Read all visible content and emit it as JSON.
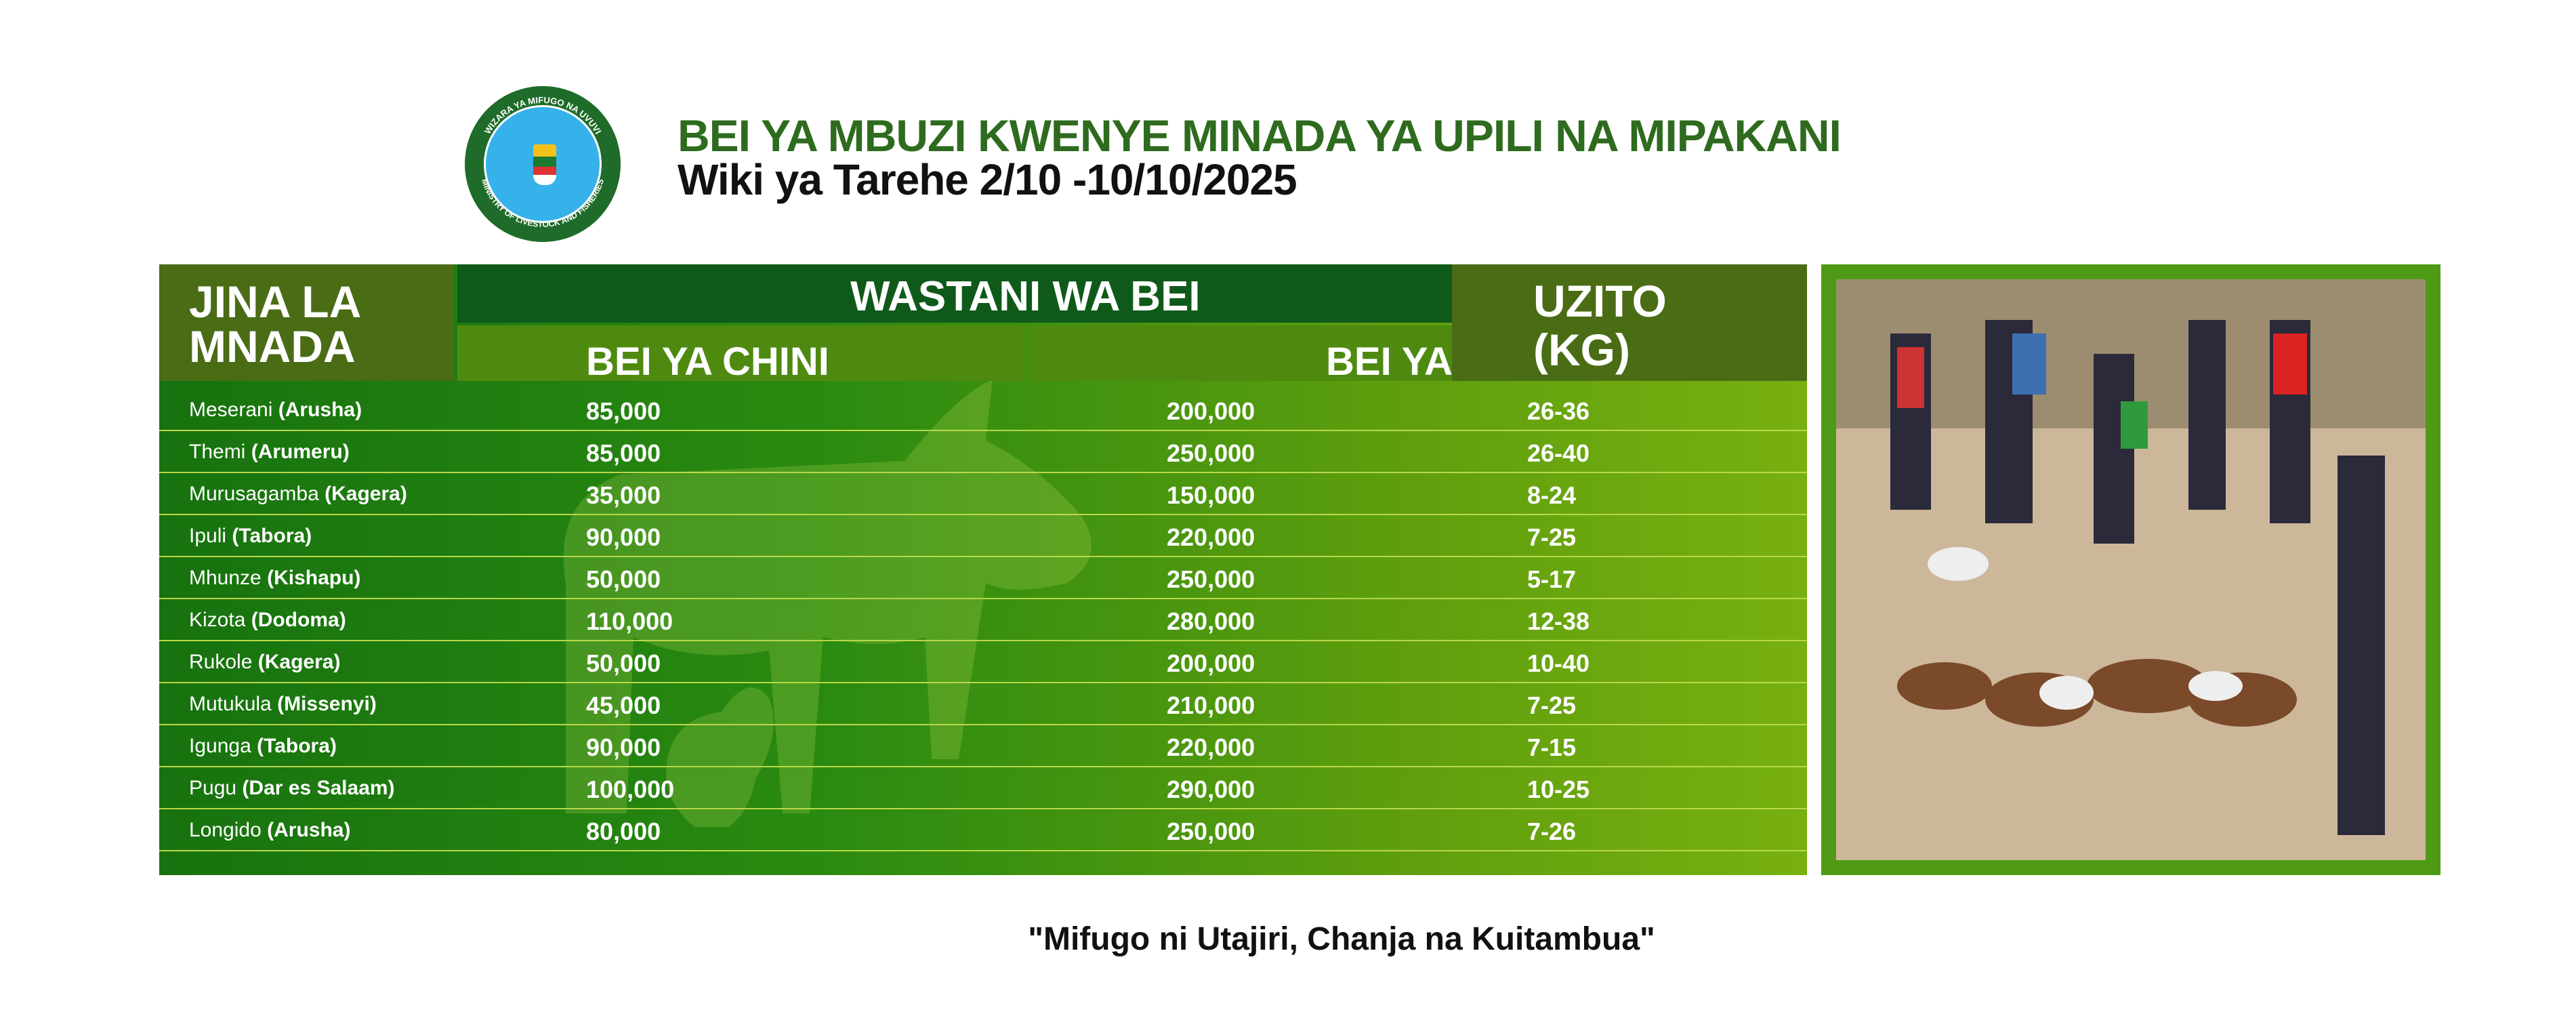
{
  "logo": {
    "text_top": "WIZARA YA MIFUGO NA UVUVI",
    "text_bottom": "MINISTRY OF LIVESTOCK AND FISHERIES"
  },
  "header": {
    "title": "BEI YA MBUZI KWENYE MINADA  YA UPILI NA MIPAKANI",
    "subtitle": "Wiki ya Tarehe 2/10 -10/10/2025"
  },
  "table": {
    "col_name_line1": "JINA LA",
    "col_name_line2": "MNADA",
    "group_header": "WASTANI WA BEI",
    "col_low": "BEI YA CHINI",
    "col_high": "BEI YA JUU",
    "col_weight_line1": "UZITO",
    "col_weight_line2": "(KG)",
    "rows": [
      {
        "market": "Meserani",
        "region": "(Arusha)",
        "low": "85,000",
        "high": "200,000",
        "weight": "26-36"
      },
      {
        "market": "Themi",
        "region": "(Arumeru)",
        "low": "85,000",
        "high": "250,000",
        "weight": "26-40"
      },
      {
        "market": "Murusagamba",
        "region": "(Kagera)",
        "low": "35,000",
        "high": "150,000",
        "weight": "8-24"
      },
      {
        "market": "Ipuli",
        "region": "(Tabora)",
        "low": "90,000",
        "high": "220,000",
        "weight": "7-25"
      },
      {
        "market": "Mhunze",
        "region": "(Kishapu)",
        "low": "50,000",
        "high": "250,000",
        "weight": "5-17"
      },
      {
        "market": "Kizota",
        "region": "(Dodoma)",
        "low": "110,000",
        "high": "280,000",
        "weight": "12-38"
      },
      {
        "market": "Rukole",
        "region": "(Kagera)",
        "low": "50,000",
        "high": "200,000",
        "weight": "10-40"
      },
      {
        "market": "Mutukula",
        "region": "(Missenyi)",
        "low": "45,000",
        "high": "210,000",
        "weight": "7-25"
      },
      {
        "market": "Igunga",
        "region": "(Tabora)",
        "low": "90,000",
        "high": "220,000",
        "weight": "7-15"
      },
      {
        "market": "Pugu",
        "region": "(Dar es Salaam)",
        "low": "100,000",
        "high": "290,000",
        "weight": "10-25"
      },
      {
        "market": "Longido",
        "region": "(Arusha)",
        "low": "80,000",
        "high": "250,000",
        "weight": "7-26"
      }
    ]
  },
  "slogan": "\"Mifugo ni Utajiri, Chanja na Kuitambua\"",
  "colors": {
    "brand_green": "#2e6b1e",
    "header_dark": "#0f5a1a",
    "header_olive": "#4a6c15"
  }
}
